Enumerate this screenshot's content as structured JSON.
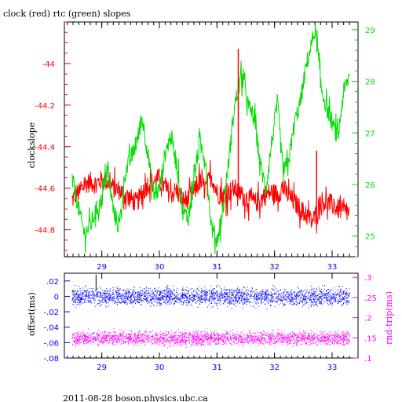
{
  "title": "clock (red) rtc (green) slopes",
  "footer": "2011-08-28  boson.physics.ubc.ca",
  "colors": {
    "clock": "#ff0000",
    "rtc": "#00dd00",
    "offset": "#0000ff",
    "rndtrip": "#ff00ff",
    "axis": "#000000"
  },
  "chart_data": [
    {
      "type": "line",
      "title": "clock (red) rtc (green) slopes",
      "ylabel": "clockslope",
      "xlim": [
        28.35,
        33.45
      ],
      "xticks": [
        29,
        30,
        31,
        32,
        33
      ],
      "ylim_left": [
        -44.93,
        -43.8
      ],
      "yticks_left": [
        -44.8,
        -44.6,
        -44.4,
        -44.2,
        -44.0
      ],
      "ylim_right": [
        24.6,
        29.15
      ],
      "yticks_right": [
        25,
        26,
        27,
        28,
        29
      ],
      "series": [
        {
          "name": "clock",
          "axis": "left",
          "color": "#ff0000",
          "x": [
            28.48,
            28.55,
            28.62,
            28.7,
            28.8,
            28.9,
            29.0,
            29.1,
            29.2,
            29.3,
            29.4,
            29.5,
            29.6,
            29.7,
            29.8,
            29.9,
            30.0,
            30.1,
            30.2,
            30.3,
            30.4,
            30.5,
            30.6,
            30.7,
            30.8,
            30.9,
            31.0,
            31.1,
            31.2,
            31.3,
            31.38,
            31.45,
            31.55,
            31.65,
            31.75,
            31.85,
            31.95,
            32.05,
            32.15,
            32.25,
            32.35,
            32.45,
            32.55,
            32.65,
            32.7,
            32.75,
            32.8,
            32.9,
            33.0,
            33.1,
            33.2,
            33.3
          ],
          "y": [
            -44.66,
            -44.63,
            -44.62,
            -44.58,
            -44.57,
            -44.58,
            -44.56,
            -44.57,
            -44.6,
            -44.61,
            -44.63,
            -44.65,
            -44.67,
            -44.63,
            -44.58,
            -44.57,
            -44.55,
            -44.6,
            -44.63,
            -44.61,
            -44.66,
            -44.65,
            -44.62,
            -44.57,
            -44.6,
            -44.54,
            -44.62,
            -44.64,
            -44.62,
            -44.6,
            -44.62,
            -44.64,
            -44.65,
            -44.67,
            -44.66,
            -44.63,
            -44.62,
            -44.63,
            -44.6,
            -44.64,
            -44.67,
            -44.7,
            -44.73,
            -44.76,
            -44.74,
            -44.7,
            -44.66,
            -44.67,
            -44.68,
            -44.7,
            -44.71,
            -44.72
          ]
        },
        {
          "name": "rtc",
          "axis": "right",
          "color": "#00dd00",
          "x": [
            28.48,
            28.55,
            28.62,
            28.7,
            28.8,
            28.9,
            29.0,
            29.1,
            29.2,
            29.3,
            29.4,
            29.5,
            29.6,
            29.7,
            29.8,
            29.9,
            30.0,
            30.1,
            30.2,
            30.3,
            30.4,
            30.5,
            30.6,
            30.7,
            30.8,
            30.9,
            31.0,
            31.1,
            31.2,
            31.3,
            31.38,
            31.45,
            31.55,
            31.65,
            31.75,
            31.85,
            31.95,
            32.05,
            32.15,
            32.25,
            32.35,
            32.45,
            32.55,
            32.65,
            32.7,
            32.75,
            32.8,
            32.9,
            33.0,
            33.1,
            33.2,
            33.3
          ],
          "y": [
            26.1,
            25.8,
            25.4,
            25.05,
            25.2,
            25.5,
            25.7,
            26.3,
            25.5,
            25.15,
            26.2,
            26.5,
            26.8,
            27.3,
            26.6,
            25.8,
            25.9,
            26.6,
            26.95,
            26.4,
            25.5,
            25.35,
            26.1,
            26.8,
            26.5,
            25.2,
            24.9,
            25.5,
            26.4,
            27.5,
            27.9,
            28.1,
            27.5,
            27.3,
            26.4,
            25.9,
            26.8,
            27.6,
            26.2,
            26.5,
            27.2,
            27.6,
            28.3,
            28.75,
            29.0,
            28.6,
            27.9,
            27.5,
            27.2,
            26.9,
            27.8,
            28.1
          ]
        }
      ],
      "spikes": [
        {
          "series": "clock",
          "x": 31.37,
          "y_top": -43.93,
          "y_bottom": -44.64
        },
        {
          "series": "clock",
          "x": 32.73,
          "y_top": -44.42,
          "y_bottom": -44.78
        }
      ]
    },
    {
      "type": "scatter",
      "xlim": [
        28.35,
        33.45
      ],
      "xticks": [
        29,
        30,
        31,
        32,
        33
      ],
      "ylabel_left": "offset(ms)",
      "ylim_left": [
        -0.08,
        0.03
      ],
      "yticks_left": [
        0.02,
        0,
        -0.02,
        -0.04,
        -0.06,
        -0.08
      ],
      "ylabel_right": "rnd-trip(ms)",
      "ylim_right": [
        0.1,
        0.31
      ],
      "yticks_right": [
        0.1,
        0.15,
        0.2,
        0.25,
        0.3
      ],
      "series": [
        {
          "name": "offset",
          "axis": "left",
          "color": "#0000ff",
          "x_range": [
            28.48,
            33.3
          ],
          "center": 0.0,
          "spread": 0.008
        },
        {
          "name": "rnd-trip",
          "axis": "right",
          "color": "#ff00ff",
          "x_range": [
            28.48,
            33.3
          ],
          "center": 0.15,
          "spread": 0.012
        }
      ]
    }
  ]
}
